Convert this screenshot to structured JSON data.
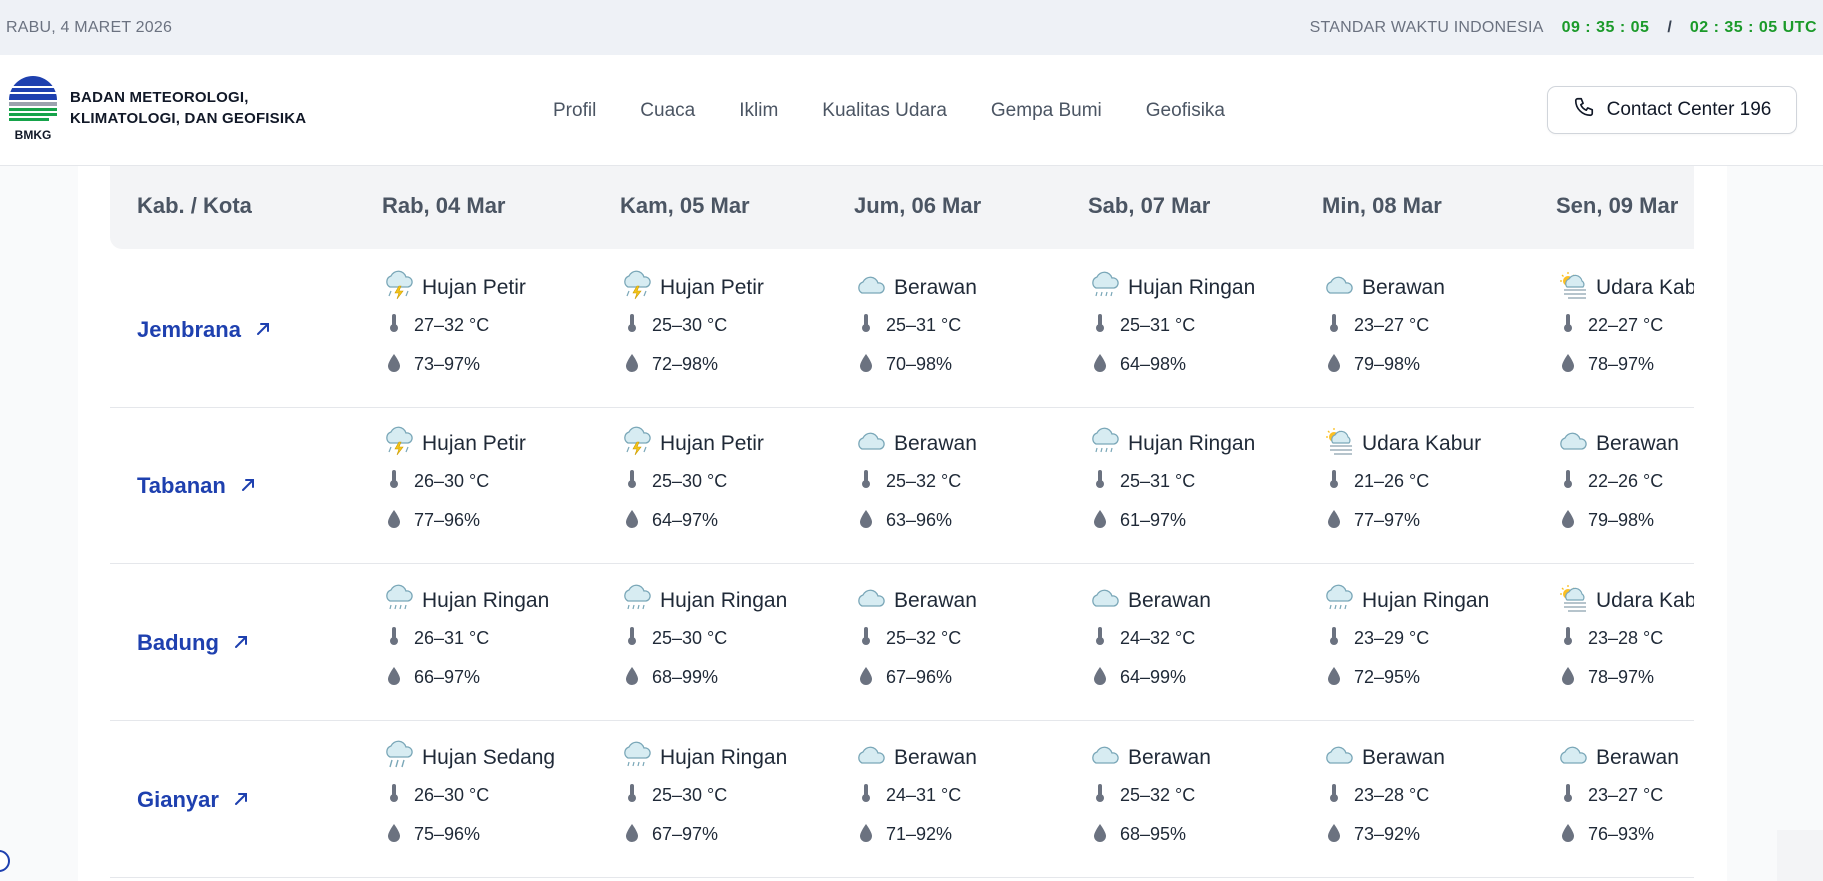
{
  "topbar": {
    "date": "RABU, 4 MARET 2026",
    "timezone_label": "STANDAR WAKTU INDONESIA",
    "local_time": "09 : 35 : 05",
    "separator": "/",
    "utc_time": "02 : 35 : 05 UTC"
  },
  "header": {
    "logo_text": "BMKG",
    "org_line1": "BADAN METEOROLOGI,",
    "org_line2": "KLIMATOLOGI, DAN GEOFISIKA",
    "menu": [
      "Profil",
      "Cuaca",
      "Iklim",
      "Kualitas Udara",
      "Gempa Bumi",
      "Geofisika"
    ],
    "contact_label": "Contact Center 196"
  },
  "table": {
    "headers": [
      "Kab. / Kota",
      "Rab, 04 Mar",
      "Kam, 05 Mar",
      "Jum, 06 Mar",
      "Sab, 07 Mar",
      "Min, 08 Mar",
      "Sen, 09 Mar"
    ],
    "rows": [
      {
        "city": "Jembrana",
        "days": [
          {
            "cond": "Hujan Petir",
            "icon": "thunderstorm-icon",
            "temp": "27–32 °C",
            "hum": "73–97%"
          },
          {
            "cond": "Hujan Petir",
            "icon": "thunderstorm-icon",
            "temp": "25–30 °C",
            "hum": "72–98%"
          },
          {
            "cond": "Berawan",
            "icon": "cloud-icon",
            "temp": "25–31 °C",
            "hum": "70–98%"
          },
          {
            "cond": "Hujan Ringan",
            "icon": "light-rain-icon",
            "temp": "25–31 °C",
            "hum": "64–98%"
          },
          {
            "cond": "Berawan",
            "icon": "cloud-icon",
            "temp": "23–27 °C",
            "hum": "79–98%"
          },
          {
            "cond": "Udara Kabur",
            "icon": "haze-icon",
            "temp": "22–27 °C",
            "hum": "78–97%"
          }
        ]
      },
      {
        "city": "Tabanan",
        "days": [
          {
            "cond": "Hujan Petir",
            "icon": "thunderstorm-icon",
            "temp": "26–30 °C",
            "hum": "77–96%"
          },
          {
            "cond": "Hujan Petir",
            "icon": "thunderstorm-icon",
            "temp": "25–30 °C",
            "hum": "64–97%"
          },
          {
            "cond": "Berawan",
            "icon": "cloud-icon",
            "temp": "25–32 °C",
            "hum": "63–96%"
          },
          {
            "cond": "Hujan Ringan",
            "icon": "light-rain-icon",
            "temp": "25–31 °C",
            "hum": "61–97%"
          },
          {
            "cond": "Udara Kabur",
            "icon": "haze-icon",
            "temp": "21–26 °C",
            "hum": "77–97%"
          },
          {
            "cond": "Berawan",
            "icon": "cloud-icon",
            "temp": "22–26 °C",
            "hum": "79–98%"
          }
        ]
      },
      {
        "city": "Badung",
        "days": [
          {
            "cond": "Hujan Ringan",
            "icon": "light-rain-icon",
            "temp": "26–31 °C",
            "hum": "66–97%"
          },
          {
            "cond": "Hujan Ringan",
            "icon": "light-rain-icon",
            "temp": "25–30 °C",
            "hum": "68–99%"
          },
          {
            "cond": "Berawan",
            "icon": "cloud-icon",
            "temp": "25–32 °C",
            "hum": "67–96%"
          },
          {
            "cond": "Berawan",
            "icon": "cloud-icon",
            "temp": "24–32 °C",
            "hum": "64–99%"
          },
          {
            "cond": "Hujan Ringan",
            "icon": "light-rain-icon",
            "temp": "23–29 °C",
            "hum": "72–95%"
          },
          {
            "cond": "Udara Kabur",
            "icon": "haze-icon",
            "temp": "23–28 °C",
            "hum": "78–97%"
          }
        ]
      },
      {
        "city": "Gianyar",
        "days": [
          {
            "cond": "Hujan Sedang",
            "icon": "moderate-rain-icon",
            "temp": "26–30 °C",
            "hum": "75–96%"
          },
          {
            "cond": "Hujan Ringan",
            "icon": "light-rain-icon",
            "temp": "25–30 °C",
            "hum": "67–97%"
          },
          {
            "cond": "Berawan",
            "icon": "cloud-icon",
            "temp": "24–31 °C",
            "hum": "71–92%"
          },
          {
            "cond": "Berawan",
            "icon": "cloud-icon",
            "temp": "25–32 °C",
            "hum": "68–95%"
          },
          {
            "cond": "Berawan",
            "icon": "cloud-icon",
            "temp": "23–28 °C",
            "hum": "73–92%"
          },
          {
            "cond": "Berawan",
            "icon": "cloud-icon",
            "temp": "23–27 °C",
            "hum": "76–93%"
          }
        ]
      }
    ]
  },
  "colors": {
    "accent_link": "#1e40af",
    "clock_green": "#1b9a2a",
    "header_bg": "#f3f4f6"
  }
}
